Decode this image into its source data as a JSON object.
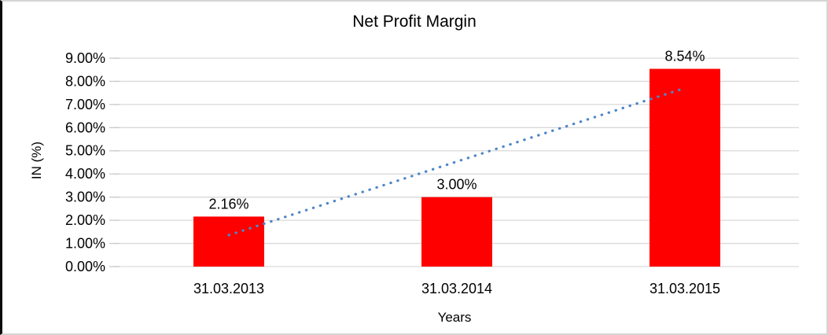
{
  "chart_data": {
    "type": "bar",
    "title": "Net Profit Margin",
    "xlabel": "Years",
    "ylabel": "IN (%)",
    "categories": [
      "31.03.2013",
      "31.03.2014",
      "31.03.2015"
    ],
    "values": [
      2.16,
      3.0,
      8.54
    ],
    "data_labels": [
      "2.16%",
      "3.00%",
      "8.54%"
    ],
    "ytick_labels": [
      "0.00%",
      "1.00%",
      "2.00%",
      "3.00%",
      "4.00%",
      "5.00%",
      "6.00%",
      "7.00%",
      "8.00%",
      "9.00%"
    ],
    "ylim": [
      0,
      9
    ],
    "grid": "horizontal",
    "legend_position": "none",
    "trendline": {
      "type": "linear",
      "style": "dotted",
      "start_value": 1.36,
      "end_value": 7.71
    },
    "colors": {
      "bar": "#FF0000",
      "trendline": "#4E86C8",
      "gridline": "#D9D9D9",
      "tick": "#C9C9C9",
      "text": "#000000",
      "background": "#FFFFFF"
    }
  }
}
